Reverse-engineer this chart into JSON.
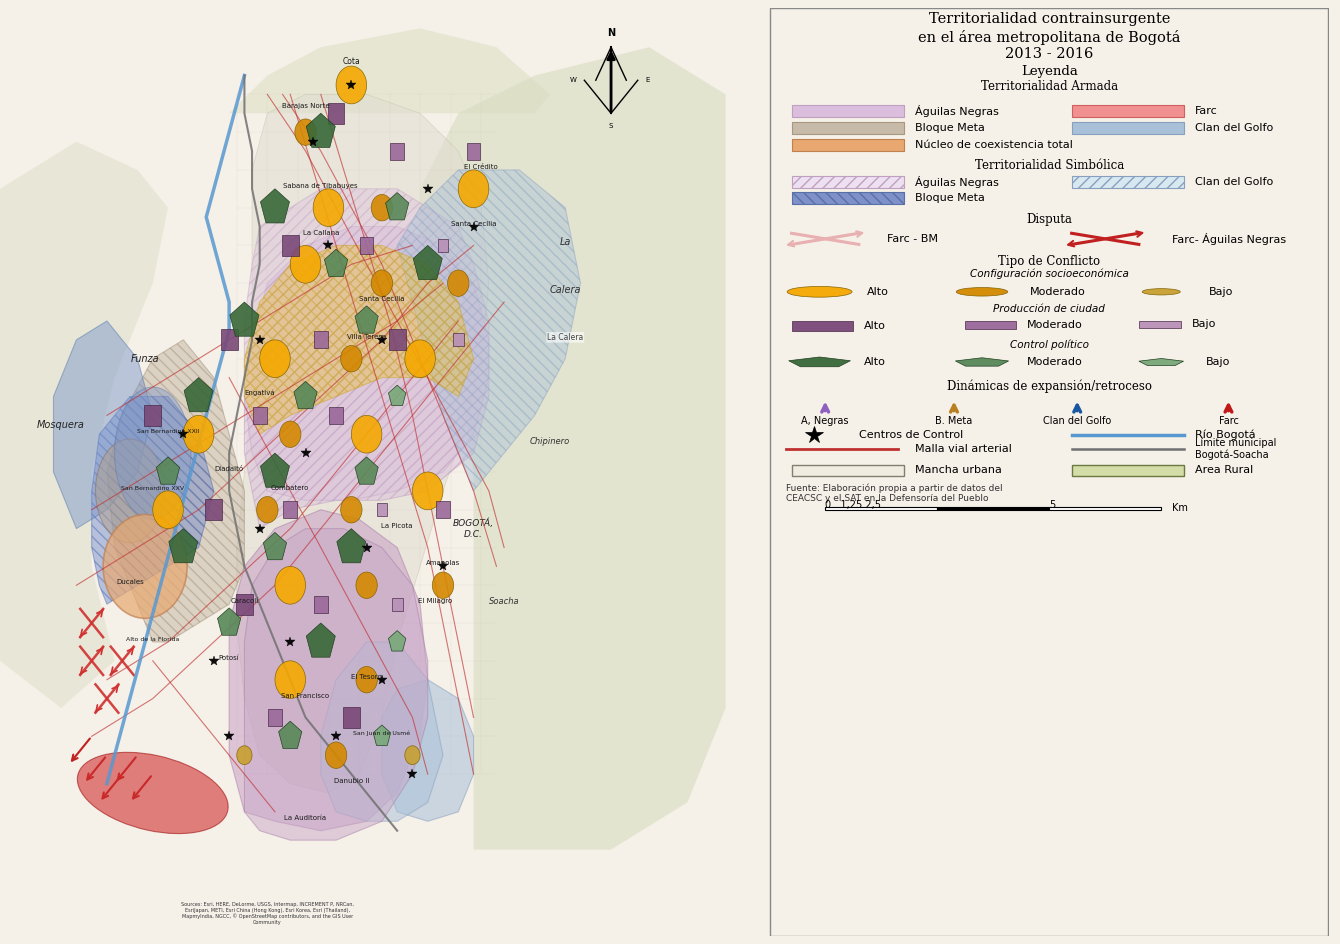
{
  "title_line1": "Territorialidad contrainsurgente",
  "title_line2": "en el área metropolitana de Bogotá",
  "title_line3": "2013 - 2016",
  "legend_title": "Leyenda",
  "section_armada": "Territorialidad Armada",
  "section_simbolica": "Territorialidad Simbólica",
  "section_disputa": "Disputa",
  "section_conflicto": "Tipo de Conflicto",
  "section_config": "Configuración socioeconómica",
  "section_prod": "Producción de ciudad",
  "section_control": "Control político",
  "section_dinamicas": "Dinámicas de expansión/retroceso",
  "bg_color": "#f5f0e8",
  "legend_bg": "#ffffff",
  "map_bg": "#ede8dc",
  "colors": {
    "aguilas_negras_fill": "#dbbedd",
    "aguilas_negras_edge": "#c0a0c0",
    "bloque_meta_fill": "#c8baa8",
    "bloque_meta_edge": "#a89880",
    "nucleo_fill": "#e8a870",
    "nucleo_edge": "#c08050",
    "farc_fill": "#f09090",
    "farc_edge": "#d06060",
    "clan_golfo_fill": "#a8c0d8",
    "clan_golfo_edge": "#88a0c0",
    "simbolica_bloque_fill": "#5878c8",
    "simbolica_bloque_edge": "#3858a8",
    "conf_alto": "#f5a800",
    "conf_moderado": "#d48800",
    "conf_bajo": "#c8a030",
    "prod_alto": "#7a4878",
    "prod_moderado": "#9a689a",
    "prod_bajo": "#b890b8",
    "control_alto": "#386838",
    "control_moderado": "#588858",
    "control_bajo": "#78a878",
    "arrow_negras": "#9060c0",
    "arrow_meta": "#b88020",
    "arrow_golfo": "#1858a0",
    "arrow_farc": "#c01818",
    "rio_bogota": "#5898d0",
    "limite_municipal": "#707070",
    "mancha_urbana_fill": "#f0ece0",
    "area_rural_fill": "#d4dca8"
  }
}
